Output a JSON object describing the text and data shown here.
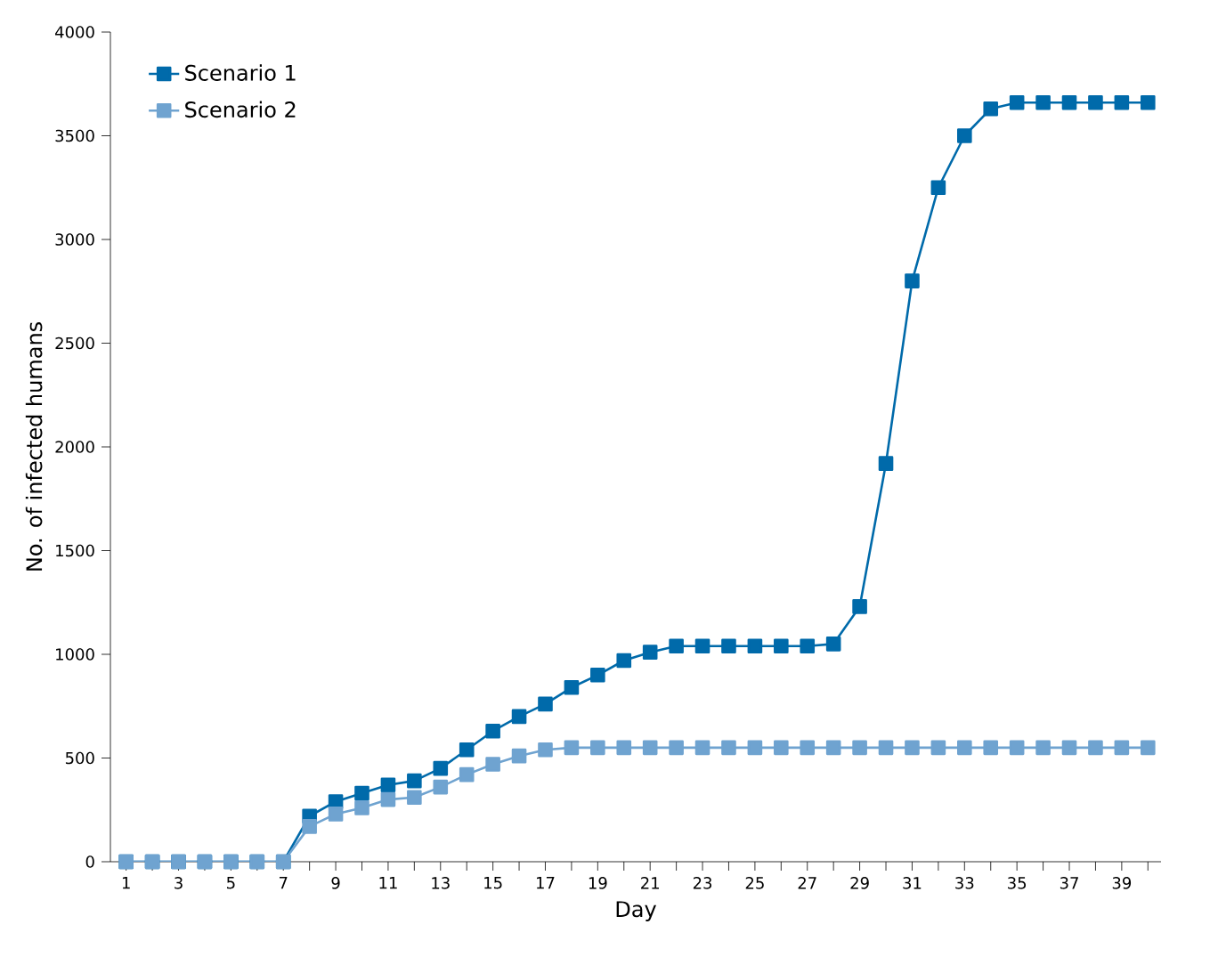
{
  "chart_data": {
    "type": "line",
    "xlabel": "Day",
    "ylabel": "No. of infected humans",
    "x": [
      1,
      2,
      3,
      4,
      5,
      6,
      7,
      8,
      9,
      10,
      11,
      12,
      13,
      14,
      15,
      16,
      17,
      18,
      19,
      20,
      21,
      22,
      23,
      24,
      25,
      26,
      27,
      28,
      29,
      30,
      31,
      32,
      33,
      34,
      35,
      36,
      37,
      38,
      39,
      40
    ],
    "series": [
      {
        "name": "Scenario 1",
        "color": "#006aaa",
        "values": [
          0,
          0,
          0,
          0,
          0,
          0,
          0,
          220,
          290,
          330,
          370,
          390,
          450,
          540,
          630,
          700,
          760,
          840,
          900,
          970,
          1010,
          1040,
          1040,
          1040,
          1040,
          1040,
          1040,
          1050,
          1230,
          1920,
          2800,
          3250,
          3500,
          3630,
          3660,
          3660,
          3660,
          3660,
          3660,
          3660
        ]
      },
      {
        "name": "Scenario 2",
        "color": "#6fa3d0",
        "values": [
          0,
          0,
          0,
          0,
          0,
          0,
          0,
          170,
          230,
          260,
          300,
          310,
          360,
          420,
          470,
          510,
          540,
          550,
          550,
          550,
          550,
          550,
          550,
          550,
          550,
          550,
          550,
          550,
          550,
          550,
          550,
          550,
          550,
          550,
          550,
          550,
          550,
          550,
          550,
          550
        ]
      }
    ],
    "xlim": [
      0.4,
      40.5
    ],
    "xticks": [
      1,
      {
        "value": 2,
        "label": null
      },
      3,
      {
        "value": 4,
        "label": null
      },
      5,
      {
        "value": 6,
        "label": null
      },
      7,
      {
        "value": 8,
        "label": null
      },
      9,
      {
        "value": 10,
        "label": null
      },
      11,
      {
        "value": 12,
        "label": null
      },
      13,
      {
        "value": 14,
        "label": null
      },
      15,
      {
        "value": 16,
        "label": null
      },
      17,
      {
        "value": 18,
        "label": null
      },
      19,
      {
        "value": 20,
        "label": null
      },
      21,
      {
        "value": 22,
        "label": null
      },
      23,
      {
        "value": 24,
        "label": null
      },
      25,
      {
        "value": 26,
        "label": null
      },
      27,
      {
        "value": 28,
        "label": null
      },
      29,
      {
        "value": 30,
        "label": null
      },
      31,
      {
        "value": 32,
        "label": null
      },
      33,
      {
        "value": 34,
        "label": null
      },
      35,
      {
        "value": 36,
        "label": null
      },
      37,
      {
        "value": 38,
        "label": null
      },
      39,
      {
        "value": 40,
        "label": null
      }
    ],
    "ylim": [
      0,
      4000
    ],
    "yticks": [
      0,
      500,
      1000,
      1500,
      2000,
      2500,
      3000,
      3500,
      4000
    ],
    "legend": "top left",
    "marker": "square",
    "line_style": "solid",
    "grid": false
  }
}
